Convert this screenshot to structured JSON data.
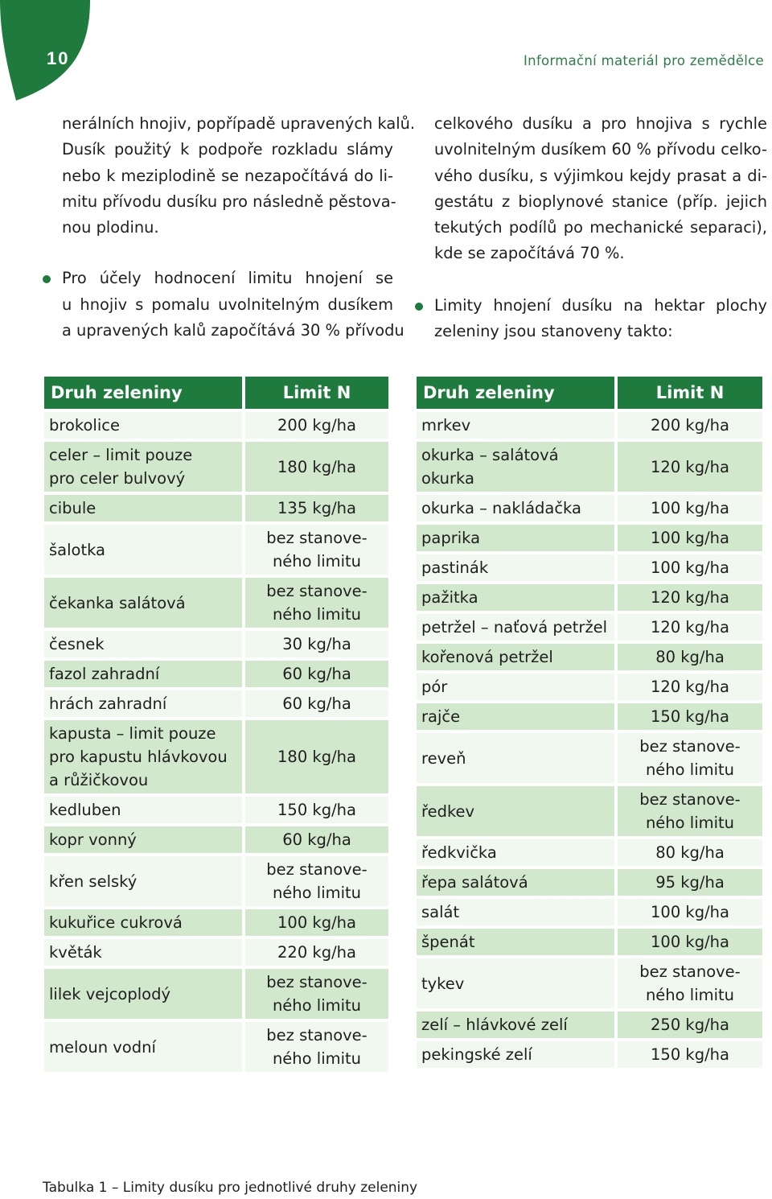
{
  "page_number": "10",
  "running_head": "Informační materiál pro zemědělce",
  "colors": {
    "brand_green": "#1f7a3e",
    "row_light": "#f1f8ef",
    "row_green": "#d2e8cd"
  },
  "text": {
    "left": {
      "p1": [
        "nerálních hnojiv, popřípadě upravených kalů.",
        "Dusík použitý k podpoře rozkladu slámy",
        "nebo k meziplodině se nezapočítává do li-",
        "mitu přívodu dusíku pro následně pěstova-",
        "nou plodinu."
      ],
      "p2": [
        "Pro účely hodnocení limitu hnojení se",
        "u hnojiv s pomalu uvolnitelným dusíkem",
        "a upravených kalů započítává 30 % přívodu"
      ]
    },
    "right": {
      "p1": [
        "celkového dusíku a pro hnojiva s rychle",
        "uvolnitelným dusíkem 60 % přívodu celko-",
        "vého dusíku, s výjimkou kejdy prasat a di-",
        "gestátu z bioplynové stanice (příp. jejich",
        "tekutých podílů po mechanické separaci),",
        "kde se započítává 70 %."
      ],
      "p2": [
        "Limity hnojení dusíku na hektar plochy",
        "zeleniny jsou stanoveny takto:"
      ]
    }
  },
  "tables": {
    "headers": {
      "name": "Druh zeleniny",
      "limit": "Limit N"
    },
    "left": [
      {
        "name": [
          "brokolice"
        ],
        "limit": [
          "200 kg/ha"
        ]
      },
      {
        "name": [
          "celer – limit pouze",
          "pro celer bulvový"
        ],
        "limit": [
          "180 kg/ha"
        ]
      },
      {
        "name": [
          "cibule"
        ],
        "limit": [
          "135 kg/ha"
        ]
      },
      {
        "name": [
          "šalotka"
        ],
        "limit": [
          "bez stanove-",
          "ného limitu"
        ]
      },
      {
        "name": [
          "čekanka salátová"
        ],
        "limit": [
          "bez stanove-",
          "ného limitu"
        ]
      },
      {
        "name": [
          "česnek"
        ],
        "limit": [
          "30 kg/ha"
        ]
      },
      {
        "name": [
          "fazol zahradní"
        ],
        "limit": [
          "60 kg/ha"
        ]
      },
      {
        "name": [
          "hrách zahradní"
        ],
        "limit": [
          "60 kg/ha"
        ]
      },
      {
        "name": [
          "kapusta – limit pouze",
          "pro kapustu hlávkovou",
          "a růžičkovou"
        ],
        "limit": [
          "180 kg/ha"
        ]
      },
      {
        "name": [
          "kedluben"
        ],
        "limit": [
          "150 kg/ha"
        ]
      },
      {
        "name": [
          "kopr vonný"
        ],
        "limit": [
          "60 kg/ha"
        ]
      },
      {
        "name": [
          "křen selský"
        ],
        "limit": [
          "bez stanove-",
          "ného limitu"
        ]
      },
      {
        "name": [
          "kukuřice cukrová"
        ],
        "limit": [
          "100 kg/ha"
        ]
      },
      {
        "name": [
          "květák"
        ],
        "limit": [
          "220 kg/ha"
        ]
      },
      {
        "name": [
          "lilek vejcoplodý"
        ],
        "limit": [
          "bez stanove-",
          "ného limitu"
        ]
      },
      {
        "name": [
          "meloun vodní"
        ],
        "limit": [
          "bez stanove-",
          "ného limitu"
        ]
      }
    ],
    "right": [
      {
        "name": [
          "mrkev"
        ],
        "limit": [
          "200 kg/ha"
        ]
      },
      {
        "name": [
          "okurka – salátová okurka"
        ],
        "limit": [
          "120 kg/ha"
        ]
      },
      {
        "name": [
          "okurka – nakládačka"
        ],
        "limit": [
          "100 kg/ha"
        ]
      },
      {
        "name": [
          "paprika"
        ],
        "limit": [
          "100 kg/ha"
        ]
      },
      {
        "name": [
          "pastinák"
        ],
        "limit": [
          "100 kg/ha"
        ]
      },
      {
        "name": [
          "pažitka"
        ],
        "limit": [
          "120 kg/ha"
        ]
      },
      {
        "name": [
          "petržel – naťová petržel"
        ],
        "limit": [
          "120 kg/ha"
        ]
      },
      {
        "name": [
          "kořenová petržel"
        ],
        "limit": [
          "80 kg/ha"
        ]
      },
      {
        "name": [
          "pór"
        ],
        "limit": [
          "120 kg/ha"
        ]
      },
      {
        "name": [
          "rajče"
        ],
        "limit": [
          "150 kg/ha"
        ]
      },
      {
        "name": [
          "reveň"
        ],
        "limit": [
          "bez stanove-",
          "ného limitu"
        ]
      },
      {
        "name": [
          "ředkev"
        ],
        "limit": [
          "bez stanove-",
          "ného limitu"
        ]
      },
      {
        "name": [
          "ředkvička"
        ],
        "limit": [
          "80 kg/ha"
        ]
      },
      {
        "name": [
          "řepa salátová"
        ],
        "limit": [
          "95 kg/ha"
        ]
      },
      {
        "name": [
          "salát"
        ],
        "limit": [
          "100 kg/ha"
        ]
      },
      {
        "name": [
          "špenát"
        ],
        "limit": [
          "100 kg/ha"
        ]
      },
      {
        "name": [
          "tykev"
        ],
        "limit": [
          "bez stanove-",
          "ného limitu"
        ]
      },
      {
        "name": [
          "zelí – hlávkové zelí"
        ],
        "limit": [
          "250 kg/ha"
        ]
      },
      {
        "name": [
          "pekingské zelí"
        ],
        "limit": [
          "150 kg/ha"
        ]
      }
    ]
  },
  "caption": "Tabulka 1 – Limity dusíku pro jednotlivé druhy zeleniny"
}
